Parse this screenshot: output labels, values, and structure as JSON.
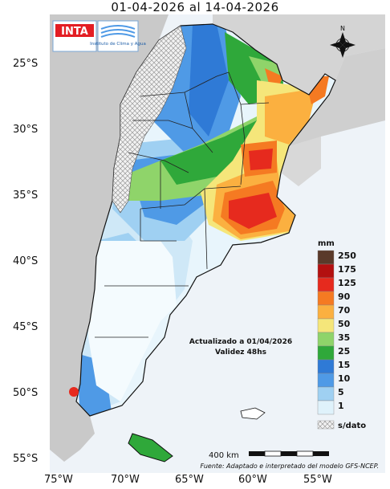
{
  "title": "01-04-2026 al 14-04-2026",
  "logo": {
    "inta": "INTA",
    "instituto": "Instituto de Clima y Agua"
  },
  "compass": {
    "north": "N"
  },
  "lat_labels": [
    "25°S",
    "30°S",
    "35°S",
    "40°S",
    "45°S",
    "50°S",
    "55°S"
  ],
  "lon_labels": [
    "75°W",
    "70°W",
    "65°W",
    "60°W",
    "55°W"
  ],
  "update": {
    "line1": "Actualizado a 01/04/2026",
    "line2": "Validez 48hs"
  },
  "scale": {
    "label": "400 km"
  },
  "source": "Fuente: Adaptado e interpretado del modelo GFS-NCEP.",
  "legend": {
    "unit": "mm",
    "nodata": "s/dato",
    "items": [
      {
        "label": "250",
        "color": "#5a3a2a"
      },
      {
        "label": "175",
        "color": "#b31010"
      },
      {
        "label": "125",
        "color": "#e62a1e"
      },
      {
        "label": "90",
        "color": "#f57a22"
      },
      {
        "label": "70",
        "color": "#fbb040"
      },
      {
        "label": "50",
        "color": "#f5e67a"
      },
      {
        "label": "35",
        "color": "#8fd46a"
      },
      {
        "label": "25",
        "color": "#2fa83a"
      },
      {
        "label": "15",
        "color": "#2f7ad6"
      },
      {
        "label": "10",
        "color": "#4f9ae6"
      },
      {
        "label": "5",
        "color": "#9fd0f2"
      },
      {
        "label": "1",
        "color": "#dff2fb"
      }
    ]
  }
}
